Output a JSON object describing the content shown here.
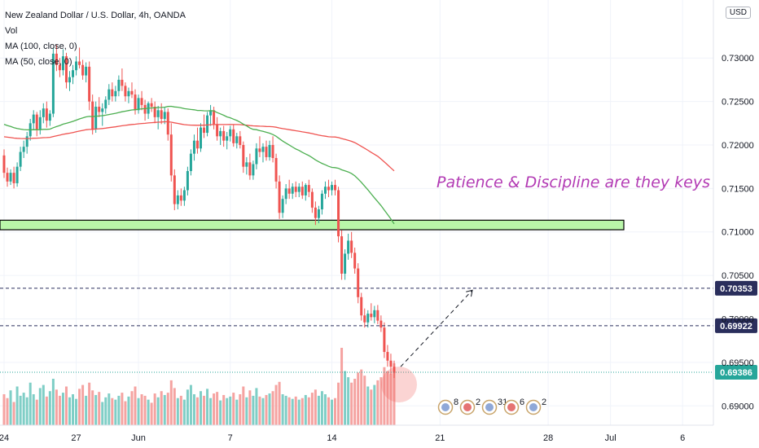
{
  "legend": {
    "symbol": "New Zealand Dollar / U.S. Dollar, 4h, OANDA",
    "vol": "Vol",
    "ma100": "MA (100, close, 0)",
    "ma50": "MA (50, close, 0)"
  },
  "currency": "USD",
  "annotation": "Patience & Discipline are they keys",
  "event_badges": [
    "8",
    "2",
    "31",
    "6",
    "2"
  ],
  "colors": {
    "up": "#26a69a",
    "down": "#ef5350",
    "vol_up": "#7fcec6",
    "vol_down": "#f5a3a1",
    "ma100": "#ef5350",
    "ma50": "#4caf50",
    "zone_fill": "#b9f6a9",
    "level_tag": "#2a2e5c",
    "last_tag": "#26a69a",
    "annotation": "#b23ab4"
  },
  "chart_data": {
    "type": "candlestick",
    "y_axis": {
      "range": [
        0.6889,
        0.7348
      ],
      "ticks": [
        "0.73000",
        "0.72500",
        "0.72000",
        "0.71500",
        "0.71000",
        "0.70500",
        "0.70000",
        "0.69500",
        "0.69000"
      ],
      "tick_values": [
        0.73,
        0.725,
        0.72,
        0.715,
        0.71,
        0.705,
        0.7,
        0.695,
        0.69
      ]
    },
    "x_axis": {
      "labels": [
        "24",
        "27",
        "Jun",
        "7",
        "14",
        "21",
        "28",
        "Jul",
        "6"
      ],
      "label_bar_index": [
        0,
        22,
        41,
        69,
        100,
        133,
        166,
        185,
        207
      ]
    },
    "bar_count": 130,
    "horizontal_levels": [
      {
        "value": 0.70353,
        "label": "0.70353",
        "style": "dashed"
      },
      {
        "value": 0.69922,
        "label": "0.69922",
        "style": "dashed"
      },
      {
        "value": 0.69386,
        "label": "0.69386",
        "style": "dotted",
        "last_price": true
      }
    ],
    "zone": {
      "top": 0.71135,
      "bottom": 0.71025
    },
    "projection": {
      "from": 0.6945,
      "to": 0.7033
    },
    "candles": [
      [
        0.7188,
        0.7195,
        0.7162,
        0.7168
      ],
      [
        0.7168,
        0.7174,
        0.7152,
        0.7158
      ],
      [
        0.7158,
        0.7172,
        0.7154,
        0.7168
      ],
      [
        0.7168,
        0.7175,
        0.715,
        0.7156
      ],
      [
        0.7156,
        0.718,
        0.7152,
        0.7175
      ],
      [
        0.7175,
        0.7198,
        0.717,
        0.7192
      ],
      [
        0.7192,
        0.7205,
        0.7185,
        0.7198
      ],
      [
        0.7198,
        0.7215,
        0.719,
        0.721
      ],
      [
        0.721,
        0.723,
        0.7205,
        0.7225
      ],
      [
        0.7225,
        0.724,
        0.7218,
        0.7235
      ],
      [
        0.7235,
        0.7238,
        0.721,
        0.7218
      ],
      [
        0.7218,
        0.724,
        0.7212,
        0.7232
      ],
      [
        0.7232,
        0.7248,
        0.7225,
        0.7242
      ],
      [
        0.7242,
        0.725,
        0.722,
        0.7228
      ],
      [
        0.7228,
        0.724,
        0.7222,
        0.7236
      ],
      [
        0.7236,
        0.7312,
        0.7232,
        0.7305
      ],
      [
        0.7305,
        0.7315,
        0.7285,
        0.7292
      ],
      [
        0.7292,
        0.73,
        0.7278,
        0.7286
      ],
      [
        0.7286,
        0.731,
        0.728,
        0.7302
      ],
      [
        0.7302,
        0.7306,
        0.7265,
        0.7272
      ],
      [
        0.7272,
        0.7285,
        0.7262,
        0.7278
      ],
      [
        0.7278,
        0.7292,
        0.727,
        0.7286
      ],
      [
        0.7286,
        0.7302,
        0.728,
        0.7296
      ],
      [
        0.7296,
        0.7312,
        0.7288,
        0.7292
      ],
      [
        0.7292,
        0.7298,
        0.7275,
        0.728
      ],
      [
        0.728,
        0.7295,
        0.7272,
        0.729
      ],
      [
        0.729,
        0.7296,
        0.724,
        0.725
      ],
      [
        0.725,
        0.7258,
        0.7212,
        0.7218
      ],
      [
        0.7218,
        0.725,
        0.7214,
        0.7244
      ],
      [
        0.7244,
        0.7255,
        0.7232,
        0.7238
      ],
      [
        0.7238,
        0.7248,
        0.7222,
        0.7242
      ],
      [
        0.7242,
        0.7256,
        0.7236,
        0.7252
      ],
      [
        0.7252,
        0.727,
        0.7246,
        0.7264
      ],
      [
        0.7264,
        0.7272,
        0.725,
        0.7256
      ],
      [
        0.7256,
        0.7268,
        0.725,
        0.7262
      ],
      [
        0.7262,
        0.728,
        0.7256,
        0.7275
      ],
      [
        0.7275,
        0.7288,
        0.7262,
        0.7268
      ],
      [
        0.7268,
        0.7272,
        0.725,
        0.7256
      ],
      [
        0.7256,
        0.7266,
        0.7248,
        0.7262
      ],
      [
        0.7262,
        0.7272,
        0.7254,
        0.7258
      ],
      [
        0.7258,
        0.7264,
        0.7235,
        0.724
      ],
      [
        0.724,
        0.7258,
        0.7236,
        0.7254
      ],
      [
        0.7254,
        0.7262,
        0.724,
        0.7246
      ],
      [
        0.7246,
        0.7252,
        0.7228,
        0.7236
      ],
      [
        0.7236,
        0.725,
        0.723,
        0.7248
      ],
      [
        0.7248,
        0.7254,
        0.7238,
        0.7244
      ],
      [
        0.7244,
        0.725,
        0.7225,
        0.7232
      ],
      [
        0.7232,
        0.7245,
        0.7218,
        0.724
      ],
      [
        0.724,
        0.7248,
        0.7224,
        0.723
      ],
      [
        0.723,
        0.7244,
        0.7224,
        0.7238
      ],
      [
        0.7238,
        0.7242,
        0.7205,
        0.7212
      ],
      [
        0.7212,
        0.7225,
        0.7158,
        0.7165
      ],
      [
        0.7165,
        0.7172,
        0.7125,
        0.7132
      ],
      [
        0.7132,
        0.7148,
        0.7126,
        0.7142
      ],
      [
        0.7142,
        0.715,
        0.713,
        0.7136
      ],
      [
        0.7136,
        0.7152,
        0.713,
        0.7148
      ],
      [
        0.7148,
        0.7175,
        0.7142,
        0.717
      ],
      [
        0.717,
        0.7195,
        0.7165,
        0.719
      ],
      [
        0.719,
        0.7212,
        0.7182,
        0.7205
      ],
      [
        0.7205,
        0.722,
        0.719,
        0.7196
      ],
      [
        0.7196,
        0.7225,
        0.7192,
        0.722
      ],
      [
        0.722,
        0.7235,
        0.7208,
        0.7214
      ],
      [
        0.7214,
        0.7238,
        0.721,
        0.7234
      ],
      [
        0.7234,
        0.7246,
        0.7222,
        0.724
      ],
      [
        0.724,
        0.7244,
        0.7218,
        0.7224
      ],
      [
        0.7224,
        0.7232,
        0.7205,
        0.721
      ],
      [
        0.721,
        0.722,
        0.72,
        0.7216
      ],
      [
        0.7216,
        0.7222,
        0.7198,
        0.7205
      ],
      [
        0.7205,
        0.7215,
        0.7195,
        0.721
      ],
      [
        0.721,
        0.7222,
        0.7204,
        0.7218
      ],
      [
        0.7218,
        0.7224,
        0.7198,
        0.7202
      ],
      [
        0.7202,
        0.7214,
        0.7196,
        0.721
      ],
      [
        0.721,
        0.7216,
        0.7196,
        0.72
      ],
      [
        0.72,
        0.7204,
        0.7168,
        0.7175
      ],
      [
        0.7175,
        0.7186,
        0.7166,
        0.718
      ],
      [
        0.718,
        0.719,
        0.716,
        0.7165
      ],
      [
        0.7165,
        0.7182,
        0.716,
        0.7178
      ],
      [
        0.7178,
        0.7202,
        0.7172,
        0.7196
      ],
      [
        0.7196,
        0.721,
        0.7186,
        0.7192
      ],
      [
        0.7192,
        0.7202,
        0.718,
        0.7198
      ],
      [
        0.7198,
        0.7205,
        0.7182,
        0.7186
      ],
      [
        0.7186,
        0.7205,
        0.7182,
        0.72
      ],
      [
        0.72,
        0.721,
        0.718,
        0.7185
      ],
      [
        0.7185,
        0.719,
        0.715,
        0.7158
      ],
      [
        0.7158,
        0.7165,
        0.7115,
        0.7122
      ],
      [
        0.7122,
        0.7142,
        0.7116,
        0.7138
      ],
      [
        0.7138,
        0.7155,
        0.7132,
        0.715
      ],
      [
        0.715,
        0.716,
        0.7138,
        0.7144
      ],
      [
        0.7144,
        0.7156,
        0.7138,
        0.7152
      ],
      [
        0.7152,
        0.7158,
        0.714,
        0.7146
      ],
      [
        0.7146,
        0.7156,
        0.714,
        0.7152
      ],
      [
        0.7152,
        0.7158,
        0.7138,
        0.7142
      ],
      [
        0.7142,
        0.7156,
        0.7136,
        0.7154
      ],
      [
        0.7154,
        0.716,
        0.714,
        0.7146
      ],
      [
        0.7146,
        0.715,
        0.7122,
        0.7128
      ],
      [
        0.7128,
        0.7135,
        0.7108,
        0.7116
      ],
      [
        0.7116,
        0.713,
        0.711,
        0.7126
      ],
      [
        0.7126,
        0.7148,
        0.712,
        0.7144
      ],
      [
        0.7144,
        0.7158,
        0.7138,
        0.7152
      ],
      [
        0.7152,
        0.716,
        0.714,
        0.7148
      ],
      [
        0.7148,
        0.7158,
        0.7142,
        0.7154
      ],
      [
        0.7154,
        0.716,
        0.7142,
        0.7148
      ],
      [
        0.7148,
        0.7152,
        0.7088,
        0.7095
      ],
      [
        0.7095,
        0.7102,
        0.7045,
        0.7052
      ],
      [
        0.7052,
        0.708,
        0.7045,
        0.7075
      ],
      [
        0.7075,
        0.7098,
        0.7068,
        0.709
      ],
      [
        0.709,
        0.71,
        0.707,
        0.7076
      ],
      [
        0.7076,
        0.7082,
        0.7052,
        0.7058
      ],
      [
        0.7058,
        0.7064,
        0.7018,
        0.7025
      ],
      [
        0.7025,
        0.703,
        0.6998,
        0.7004
      ],
      [
        0.7004,
        0.7012,
        0.699,
        0.6996
      ],
      [
        0.6996,
        0.701,
        0.699,
        0.7006
      ],
      [
        0.7006,
        0.7018,
        0.6998,
        0.7002
      ],
      [
        0.7002,
        0.7015,
        0.6995,
        0.701
      ],
      [
        0.701,
        0.7016,
        0.6994,
        0.6998
      ],
      [
        0.6998,
        0.7004,
        0.6985,
        0.699
      ],
      [
        0.699,
        0.6996,
        0.6955,
        0.6962
      ],
      [
        0.6962,
        0.697,
        0.6945,
        0.6952
      ],
      [
        0.6952,
        0.696,
        0.6936,
        0.6945
      ],
      [
        0.6945,
        0.6952,
        0.6932,
        0.6938
      ]
    ],
    "volumes": [
      0.4,
      0.35,
      0.45,
      0.3,
      0.5,
      0.38,
      0.42,
      0.36,
      0.55,
      0.4,
      0.33,
      0.48,
      0.52,
      0.37,
      0.44,
      0.6,
      0.46,
      0.38,
      0.42,
      0.5,
      0.36,
      0.4,
      0.34,
      0.47,
      0.52,
      0.38,
      0.55,
      0.45,
      0.39,
      0.43,
      0.3,
      0.36,
      0.41,
      0.35,
      0.33,
      0.38,
      0.42,
      0.31,
      0.37,
      0.44,
      0.5,
      0.35,
      0.4,
      0.38,
      0.33,
      0.29,
      0.41,
      0.36,
      0.44,
      0.39,
      0.42,
      0.58,
      0.48,
      0.35,
      0.38,
      0.33,
      0.46,
      0.52,
      0.4,
      0.36,
      0.44,
      0.38,
      0.47,
      0.35,
      0.41,
      0.43,
      0.32,
      0.39,
      0.35,
      0.37,
      0.42,
      0.33,
      0.4,
      0.5,
      0.36,
      0.45,
      0.38,
      0.48,
      0.37,
      0.35,
      0.39,
      0.41,
      0.44,
      0.52,
      0.56,
      0.4,
      0.38,
      0.36,
      0.34,
      0.37,
      0.33,
      0.35,
      0.39,
      0.36,
      0.42,
      0.46,
      0.38,
      0.44,
      0.4,
      0.36,
      0.33,
      0.35,
      0.55,
      1.0,
      0.7,
      0.62,
      0.55,
      0.6,
      0.68,
      0.72,
      0.64,
      0.5,
      0.46,
      0.52,
      0.58,
      0.62,
      0.75,
      0.7,
      0.66,
      0.8
    ]
  }
}
